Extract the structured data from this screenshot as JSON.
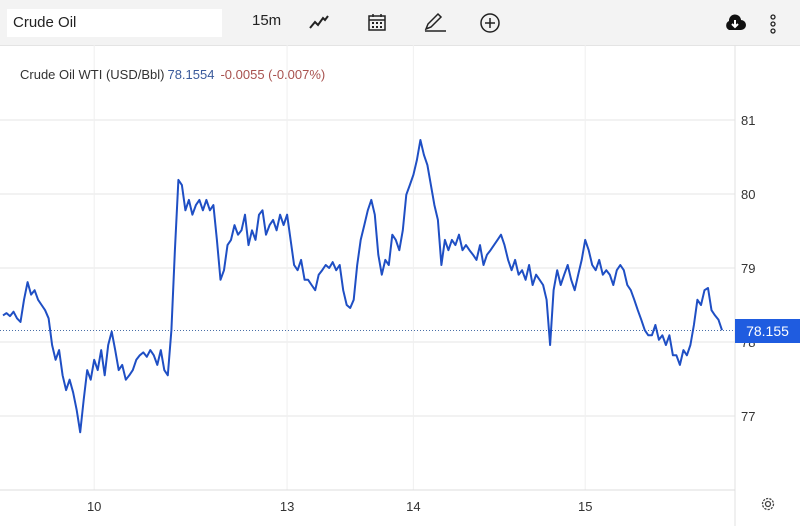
{
  "toolbar": {
    "search_value": "Crude Oil",
    "interval": "15m",
    "icons": [
      "line-chart-icon",
      "calendar-icon",
      "pencil-icon",
      "plus-circle-icon",
      "cloud-download-icon",
      "more-vertical-icon",
      "gear-icon"
    ]
  },
  "legend": {
    "name": "Crude Oil WTI (USD/Bbl)",
    "value": "78.1554",
    "change": "-0.0055 (-0.007%)"
  },
  "last_price_label": "78.155",
  "colors": {
    "line": "#1f4fc4",
    "price_tag": "#1f5ce0",
    "change": "#a8524f",
    "value": "#3a5a9b"
  },
  "chart_data": {
    "type": "line",
    "title": "Crude Oil WTI (USD/Bbl)",
    "xlabel": "",
    "ylabel": "",
    "ylim": [
      76.0,
      81.97
    ],
    "y_ticks": [
      77,
      78,
      79,
      80,
      81
    ],
    "x_ticks": [
      {
        "index": 26,
        "label": "10"
      },
      {
        "index": 81,
        "label": "13"
      },
      {
        "index": 117,
        "label": "14"
      },
      {
        "index": 166,
        "label": "15"
      }
    ],
    "last_value": 78.155,
    "grid": true,
    "series": [
      {
        "name": "Crude Oil WTI",
        "values": [
          78.36,
          78.39,
          78.35,
          78.41,
          78.32,
          78.27,
          78.57,
          78.81,
          78.64,
          78.7,
          78.57,
          78.5,
          78.43,
          78.32,
          77.96,
          77.76,
          77.89,
          77.55,
          77.35,
          77.49,
          77.32,
          77.08,
          76.78,
          77.22,
          77.62,
          77.49,
          77.76,
          77.62,
          77.89,
          77.55,
          77.96,
          78.14,
          77.89,
          77.62,
          77.69,
          77.49,
          77.55,
          77.62,
          77.76,
          77.82,
          77.86,
          77.8,
          77.89,
          77.82,
          77.69,
          77.89,
          77.62,
          77.55,
          78.16,
          79.24,
          80.19,
          80.12,
          79.78,
          79.92,
          79.72,
          79.85,
          79.92,
          79.78,
          79.92,
          79.78,
          79.85,
          79.38,
          78.84,
          78.97,
          79.31,
          79.38,
          79.58,
          79.45,
          79.51,
          79.72,
          79.31,
          79.51,
          79.38,
          79.72,
          79.78,
          79.45,
          79.58,
          79.65,
          79.51,
          79.72,
          79.58,
          79.72,
          79.38,
          79.04,
          78.97,
          79.11,
          78.84,
          78.84,
          78.77,
          78.7,
          78.91,
          78.97,
          79.04,
          79.0,
          79.08,
          78.97,
          79.04,
          78.7,
          78.5,
          78.46,
          78.57,
          79.04,
          79.38,
          79.58,
          79.78,
          79.92,
          79.72,
          79.18,
          78.91,
          79.11,
          79.04,
          79.45,
          79.38,
          79.24,
          79.51,
          79.99,
          80.12,
          80.26,
          80.46,
          80.73,
          80.53,
          80.39,
          80.12,
          79.85,
          79.65,
          79.04,
          79.38,
          79.24,
          79.38,
          79.31,
          79.45,
          79.24,
          79.31,
          79.24,
          79.18,
          79.11,
          79.31,
          79.04,
          79.18,
          79.24,
          79.31,
          79.38,
          79.45,
          79.31,
          79.11,
          78.97,
          79.11,
          78.91,
          78.97,
          78.84,
          79.04,
          78.77,
          78.91,
          78.84,
          78.77,
          78.57,
          77.96,
          78.7,
          78.97,
          78.77,
          78.91,
          79.04,
          78.84,
          78.7,
          78.91,
          79.11,
          79.38,
          79.24,
          79.04,
          78.97,
          79.11,
          78.91,
          78.97,
          78.91,
          78.77,
          78.97,
          79.04,
          78.97,
          78.77,
          78.7,
          78.57,
          78.43,
          78.3,
          78.16,
          78.09,
          78.09,
          78.23,
          78.03,
          78.09,
          77.96,
          78.09,
          77.82,
          77.82,
          77.69,
          77.89,
          77.82,
          77.96,
          78.23,
          78.57,
          78.5,
          78.7,
          78.73,
          78.43,
          78.36,
          78.3,
          78.16
        ]
      }
    ]
  }
}
